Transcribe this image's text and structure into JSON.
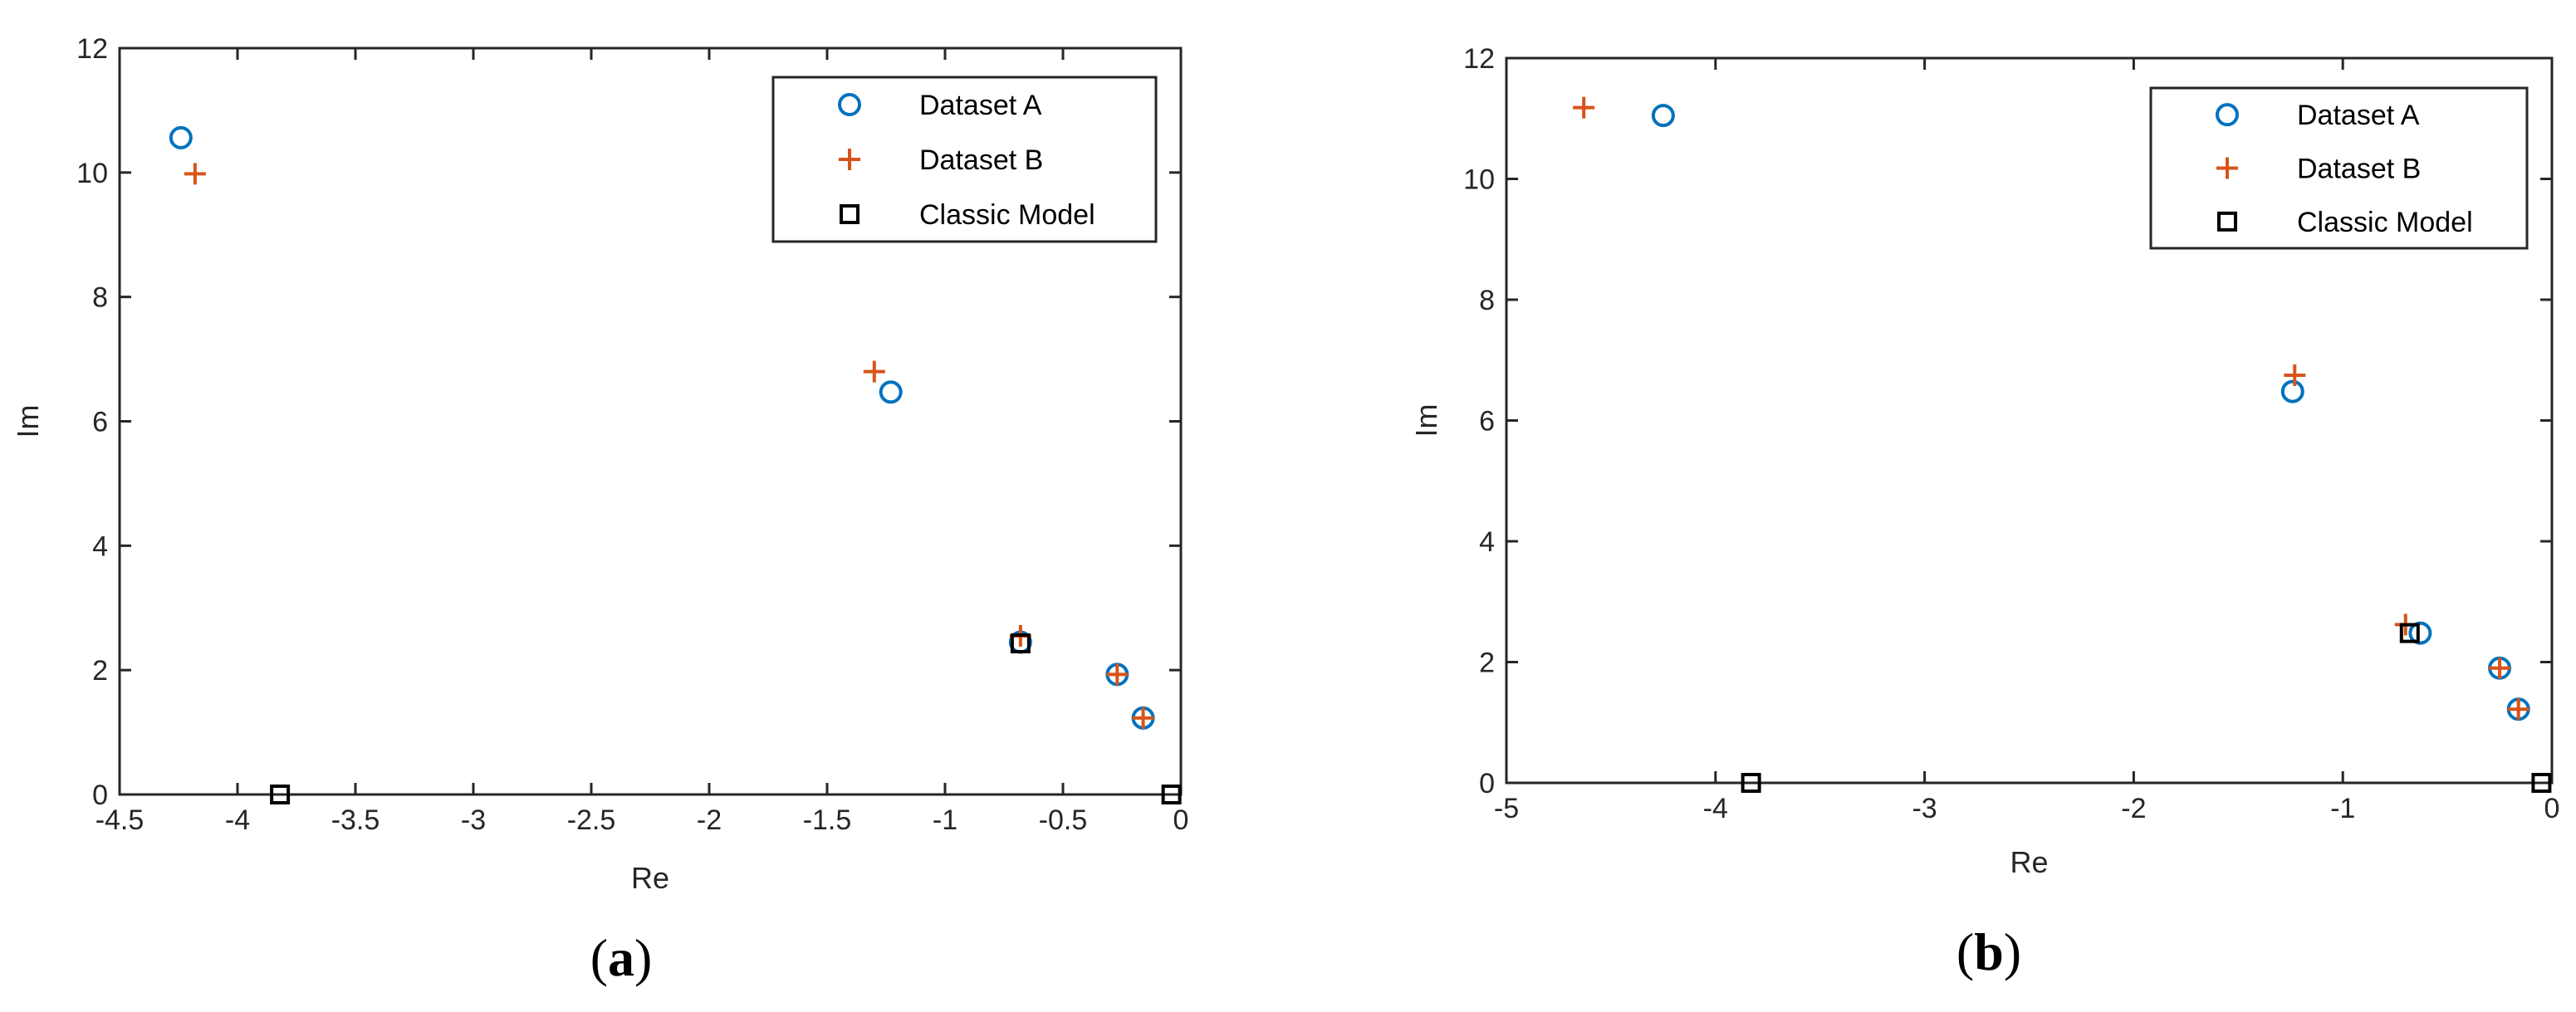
{
  "colors": {
    "dataset_a": "#0072BD",
    "dataset_b": "#D95319",
    "classic_model": "#000000",
    "axes": "#262626"
  },
  "chart_data": [
    {
      "type": "scatter",
      "caption": "a",
      "xlabel": "Re",
      "ylabel": "Im",
      "xlim": [
        -4.5,
        0
      ],
      "ylim": [
        0,
        12
      ],
      "xticks": [
        -4.5,
        -4,
        -3.5,
        -3,
        -2.5,
        -2,
        -1.5,
        -1,
        -0.5,
        0
      ],
      "xtick_labels": [
        "-4.5",
        "-4",
        "-3.5",
        "-3",
        "-2.5",
        "-2",
        "-1.5",
        "-1",
        "-0.5",
        "0"
      ],
      "yticks": [
        0,
        2,
        4,
        6,
        8,
        10,
        12
      ],
      "ytick_labels": [
        "0",
        "2",
        "4",
        "6",
        "8",
        "10",
        "12"
      ],
      "grid": false,
      "legend_position": "top-right",
      "series": [
        {
          "name": "Dataset A",
          "marker": "circle",
          "color": "#0072BD",
          "x": [
            -4.24,
            -1.23,
            -0.68,
            -0.27,
            -0.16
          ],
          "y": [
            10.56,
            6.47,
            2.45,
            1.93,
            1.23
          ]
        },
        {
          "name": "Dataset B",
          "marker": "plus",
          "color": "#D95319",
          "x": [
            -4.18,
            -1.3,
            -0.68,
            -0.27,
            -0.16
          ],
          "y": [
            9.98,
            6.8,
            2.55,
            1.93,
            1.23
          ]
        },
        {
          "name": "Classic Model",
          "marker": "square",
          "color": "#000000",
          "x": [
            -3.82,
            -0.68,
            -0.04
          ],
          "y": [
            0,
            2.43,
            0
          ]
        }
      ]
    },
    {
      "type": "scatter",
      "caption": "b",
      "xlabel": "Re",
      "ylabel": "Im",
      "xlim": [
        -5,
        0
      ],
      "ylim": [
        0,
        12
      ],
      "xticks": [
        -5,
        -4,
        -3,
        -2,
        -1,
        0
      ],
      "xtick_labels": [
        "-5",
        "-4",
        "-3",
        "-2",
        "-1",
        "0"
      ],
      "yticks": [
        0,
        2,
        4,
        6,
        8,
        10,
        12
      ],
      "ytick_labels": [
        "0",
        "2",
        "4",
        "6",
        "8",
        "10",
        "12"
      ],
      "grid": false,
      "legend_position": "top-right",
      "series": [
        {
          "name": "Dataset A",
          "marker": "circle",
          "color": "#0072BD",
          "x": [
            -4.25,
            -1.24,
            -0.63,
            -0.25,
            -0.16
          ],
          "y": [
            11.05,
            6.48,
            2.48,
            1.9,
            1.22
          ]
        },
        {
          "name": "Dataset B",
          "marker": "plus",
          "color": "#D95319",
          "x": [
            -4.63,
            -1.23,
            -0.7,
            -0.25,
            -0.16
          ],
          "y": [
            11.18,
            6.75,
            2.62,
            1.9,
            1.22
          ]
        },
        {
          "name": "Classic Model",
          "marker": "square",
          "color": "#000000",
          "x": [
            -3.83,
            -0.68,
            -0.05
          ],
          "y": [
            0,
            2.48,
            0
          ]
        }
      ]
    }
  ]
}
